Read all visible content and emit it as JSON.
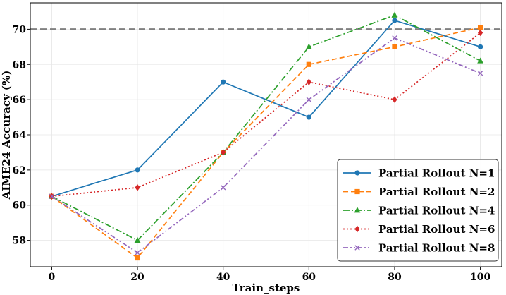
{
  "chart_data": {
    "type": "line",
    "title": "",
    "xlabel": "Train_steps",
    "ylabel": "AIME24 Accuracy (%)",
    "x": [
      0,
      20,
      40,
      60,
      80,
      100
    ],
    "xlim": [
      -5,
      105
    ],
    "ylim": [
      56.5,
      71.5
    ],
    "xticks": [
      "0",
      "20",
      "40",
      "60",
      "80",
      "100"
    ],
    "yticks": [
      "58",
      "60",
      "62",
      "64",
      "66",
      "68",
      "70"
    ],
    "grid": true,
    "legend_position": "bottom-right",
    "reference_line": {
      "y": 70,
      "style": "dashed",
      "color": "#808080"
    },
    "series": [
      {
        "name": "Partial Rollout N=1",
        "color": "#1f77b4",
        "dash": "solid",
        "marker": "circle",
        "values": [
          60.5,
          62,
          67,
          65,
          70.5,
          69
        ]
      },
      {
        "name": "Partial Rollout N=2",
        "color": "#ff7f0e",
        "dash": "dashed",
        "marker": "square",
        "values": [
          60.5,
          57,
          63,
          68,
          69,
          70.1
        ]
      },
      {
        "name": "Partial Rollout N=4",
        "color": "#2ca02c",
        "dash": "dashdot",
        "marker": "triangle",
        "values": [
          60.5,
          58,
          63,
          69,
          70.8,
          68.2
        ]
      },
      {
        "name": "Partial Rollout N=6",
        "color": "#d62728",
        "dash": "dotted",
        "marker": "diamond",
        "values": [
          60.5,
          61,
          63,
          67,
          66,
          69.8
        ]
      },
      {
        "name": "Partial Rollout N=8",
        "color": "#9467bd",
        "dash": "dashdotdot",
        "marker": "x",
        "values": [
          60.5,
          57.3,
          61,
          66,
          69.5,
          67.5
        ]
      }
    ]
  }
}
